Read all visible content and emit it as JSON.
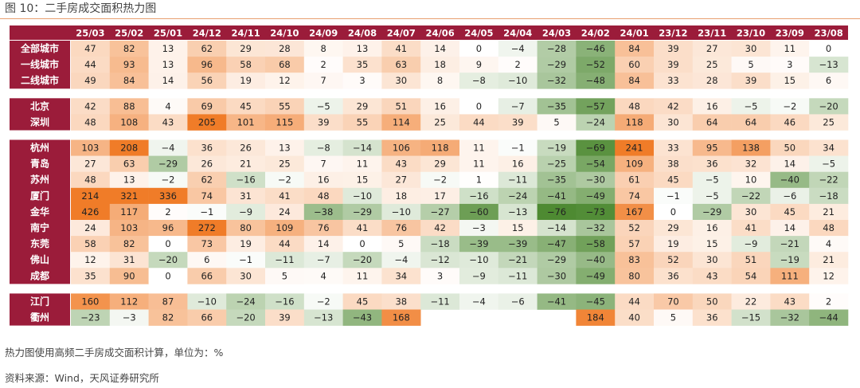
{
  "figure": {
    "title": "图 10：二手房成交面积热力图",
    "note": "热力图使用高频二手房成交面积计算，单位为：%",
    "source": "资料来源：Wind，天风证券研究所"
  },
  "colors": {
    "label_bg": "#9b1c3a",
    "label_text": "#ffffff",
    "header_bg": "#9b1c3a",
    "header_text": "#ffffff",
    "positive_max": "#f07c28",
    "negative_max": "#4e8a32",
    "neutral": "#ffffff",
    "rule": "#e8a070"
  },
  "chart_data": {
    "type": "heatmap",
    "columns": [
      "25/03",
      "25/02",
      "25/01",
      "24/12",
      "24/11",
      "24/10",
      "24/09",
      "24/08",
      "24/07",
      "24/06",
      "24/05",
      "24/04",
      "24/03",
      "24/02",
      "24/01",
      "23/12",
      "23/11",
      "23/10",
      "23/09",
      "23/08"
    ],
    "groups": [
      {
        "rows": [
          {
            "label": "全部城市",
            "values": [
              47,
              82,
              13,
              62,
              29,
              28,
              8,
              13,
              41,
              14,
              0,
              -4,
              -28,
              -46,
              84,
              39,
              27,
              30,
              11,
              0
            ]
          },
          {
            "label": "一线城市",
            "values": [
              44,
              93,
              13,
              96,
              58,
              68,
              2,
              35,
              63,
              18,
              9,
              2,
              -29,
              -52,
              60,
              39,
              25,
              5,
              3,
              -13
            ]
          },
          {
            "label": "二线城市",
            "values": [
              49,
              84,
              14,
              56,
              19,
              12,
              7,
              3,
              30,
              8,
              -8,
              -10,
              -32,
              -48,
              84,
              33,
              28,
              39,
              15,
              6
            ]
          }
        ]
      },
      {
        "rows": [
          {
            "label": "北京",
            "values": [
              42,
              88,
              4,
              69,
              45,
              55,
              -5,
              29,
              51,
              16,
              0,
              -7,
              -35,
              -57,
              48,
              42,
              16,
              -5,
              -2,
              -20
            ]
          },
          {
            "label": "深圳",
            "values": [
              48,
              108,
              43,
              205,
              101,
              115,
              39,
              55,
              114,
              25,
              44,
              39,
              5,
              -24,
              118,
              30,
              64,
              64,
              46,
              25
            ]
          }
        ]
      },
      {
        "rows": [
          {
            "label": "杭州",
            "values": [
              103,
              208,
              -4,
              36,
              26,
              13,
              -8,
              -14,
              106,
              118,
              11,
              -1,
              -19,
              -69,
              241,
              33,
              95,
              138,
              50,
              34
            ]
          },
          {
            "label": "青岛",
            "values": [
              27,
              63,
              -29,
              26,
              21,
              25,
              7,
              11,
              43,
              29,
              11,
              16,
              -25,
              -54,
              109,
              38,
              36,
              32,
              14,
              -5
            ]
          },
          {
            "label": "苏州",
            "values": [
              48,
              13,
              -2,
              62,
              -16,
              -2,
              16,
              15,
              27,
              -2,
              1,
              -11,
              -35,
              -30,
              61,
              45,
              -5,
              10,
              -40,
              -22
            ]
          },
          {
            "label": "厦门",
            "values": [
              214,
              321,
              336,
              74,
              31,
              41,
              48,
              -10,
              18,
              17,
              -16,
              -24,
              -41,
              -49,
              74,
              -1,
              -5,
              -22,
              -6,
              -18
            ]
          },
          {
            "label": "金华",
            "values": [
              426,
              117,
              2,
              -1,
              -9,
              24,
              -38,
              -29,
              -10,
              -27,
              -60,
              -13,
              -76,
              -73,
              167,
              0,
              -29,
              30,
              45,
              21
            ]
          },
          {
            "label": "南宁",
            "values": [
              24,
              103,
              96,
              272,
              80,
              109,
              76,
              41,
              76,
              42,
              -3,
              15,
              -14,
              -32,
              52,
              29,
              16,
              41,
              14,
              48
            ]
          },
          {
            "label": "东莞",
            "values": [
              58,
              82,
              0,
              73,
              19,
              44,
              14,
              0,
              5,
              -18,
              -39,
              -39,
              -47,
              -58,
              57,
              19,
              15,
              -9,
              -21,
              4
            ]
          },
          {
            "label": "佛山",
            "values": [
              12,
              31,
              -20,
              6,
              -1,
              -11,
              -7,
              -20,
              -4,
              -12,
              -10,
              -21,
              -29,
              -40,
              83,
              52,
              30,
              51,
              -19,
              21
            ]
          },
          {
            "label": "成都",
            "values": [
              35,
              90,
              0,
              66,
              30,
              5,
              4,
              11,
              34,
              3,
              -9,
              -11,
              -30,
              -49,
              80,
              36,
              43,
              54,
              111,
              12
            ]
          }
        ]
      },
      {
        "rows": [
          {
            "label": "江门",
            "values": [
              160,
              112,
              87,
              -10,
              -24,
              -16,
              -2,
              45,
              38,
              -11,
              -4,
              -6,
              -41,
              -45,
              44,
              70,
              50,
              22,
              43,
              2
            ]
          },
          {
            "label": "衢州",
            "values": [
              -23,
              -3,
              82,
              66,
              -20,
              39,
              -13,
              -43,
              168,
              null,
              null,
              null,
              null,
              184,
              40,
              5,
              36,
              -15,
              -32,
              -44
            ]
          }
        ]
      }
    ],
    "unit": "%"
  }
}
